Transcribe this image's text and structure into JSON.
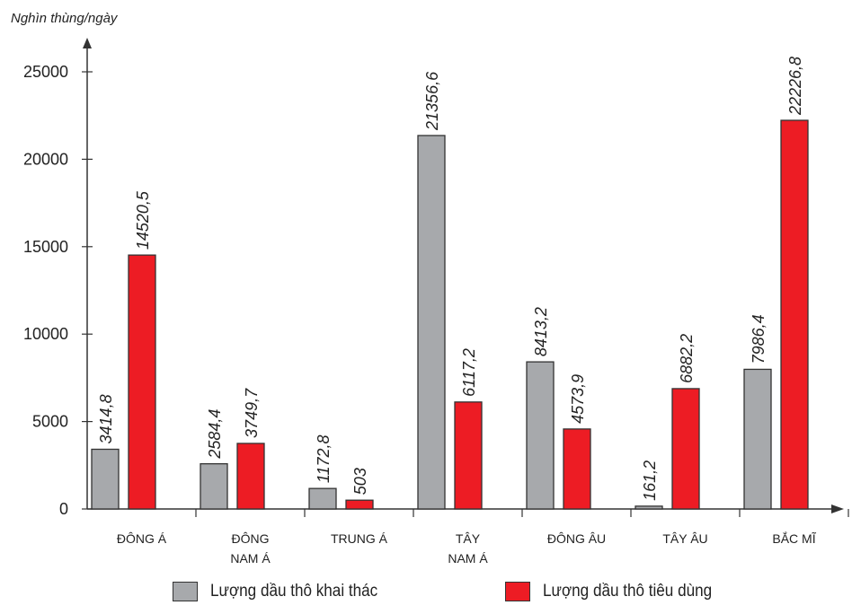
{
  "chart_data": {
    "type": "bar",
    "ylabel": "Nghìn thùng/ngày",
    "xlabel": "",
    "ylim": [
      0,
      25000
    ],
    "yticks": [
      0,
      5000,
      10000,
      15000,
      20000,
      25000
    ],
    "grid": false,
    "legend_position": "bottom",
    "categories": [
      [
        "ĐÔNG Á"
      ],
      [
        "ĐÔNG",
        "NAM Á"
      ],
      [
        "TRUNG Á"
      ],
      [
        "TÂY",
        "NAM Á"
      ],
      [
        "ĐÔNG ÂU"
      ],
      [
        "TÂY ÂU"
      ],
      [
        "BẮC MĨ"
      ]
    ],
    "series": [
      {
        "name": "Lượng dầu thô khai thác",
        "color": "#a7a9ac",
        "values": [
          3414.8,
          2584.4,
          1172.8,
          21356.6,
          8413.2,
          161.2,
          7986.4
        ],
        "labels": [
          "3414,8",
          "2584,4",
          "1172,8",
          "21356,6",
          "8413,2",
          "161,2",
          "7986,4"
        ]
      },
      {
        "name": "Lượng dầu thô tiêu dùng",
        "color": "#ed1c24",
        "values": [
          14520.5,
          3749.7,
          503,
          6117.2,
          4573.9,
          6882.2,
          22226.8
        ],
        "labels": [
          "14520,5",
          "3749,7",
          "503",
          "6117,2",
          "4573,9",
          "6882,2",
          "22226,8"
        ]
      }
    ]
  }
}
